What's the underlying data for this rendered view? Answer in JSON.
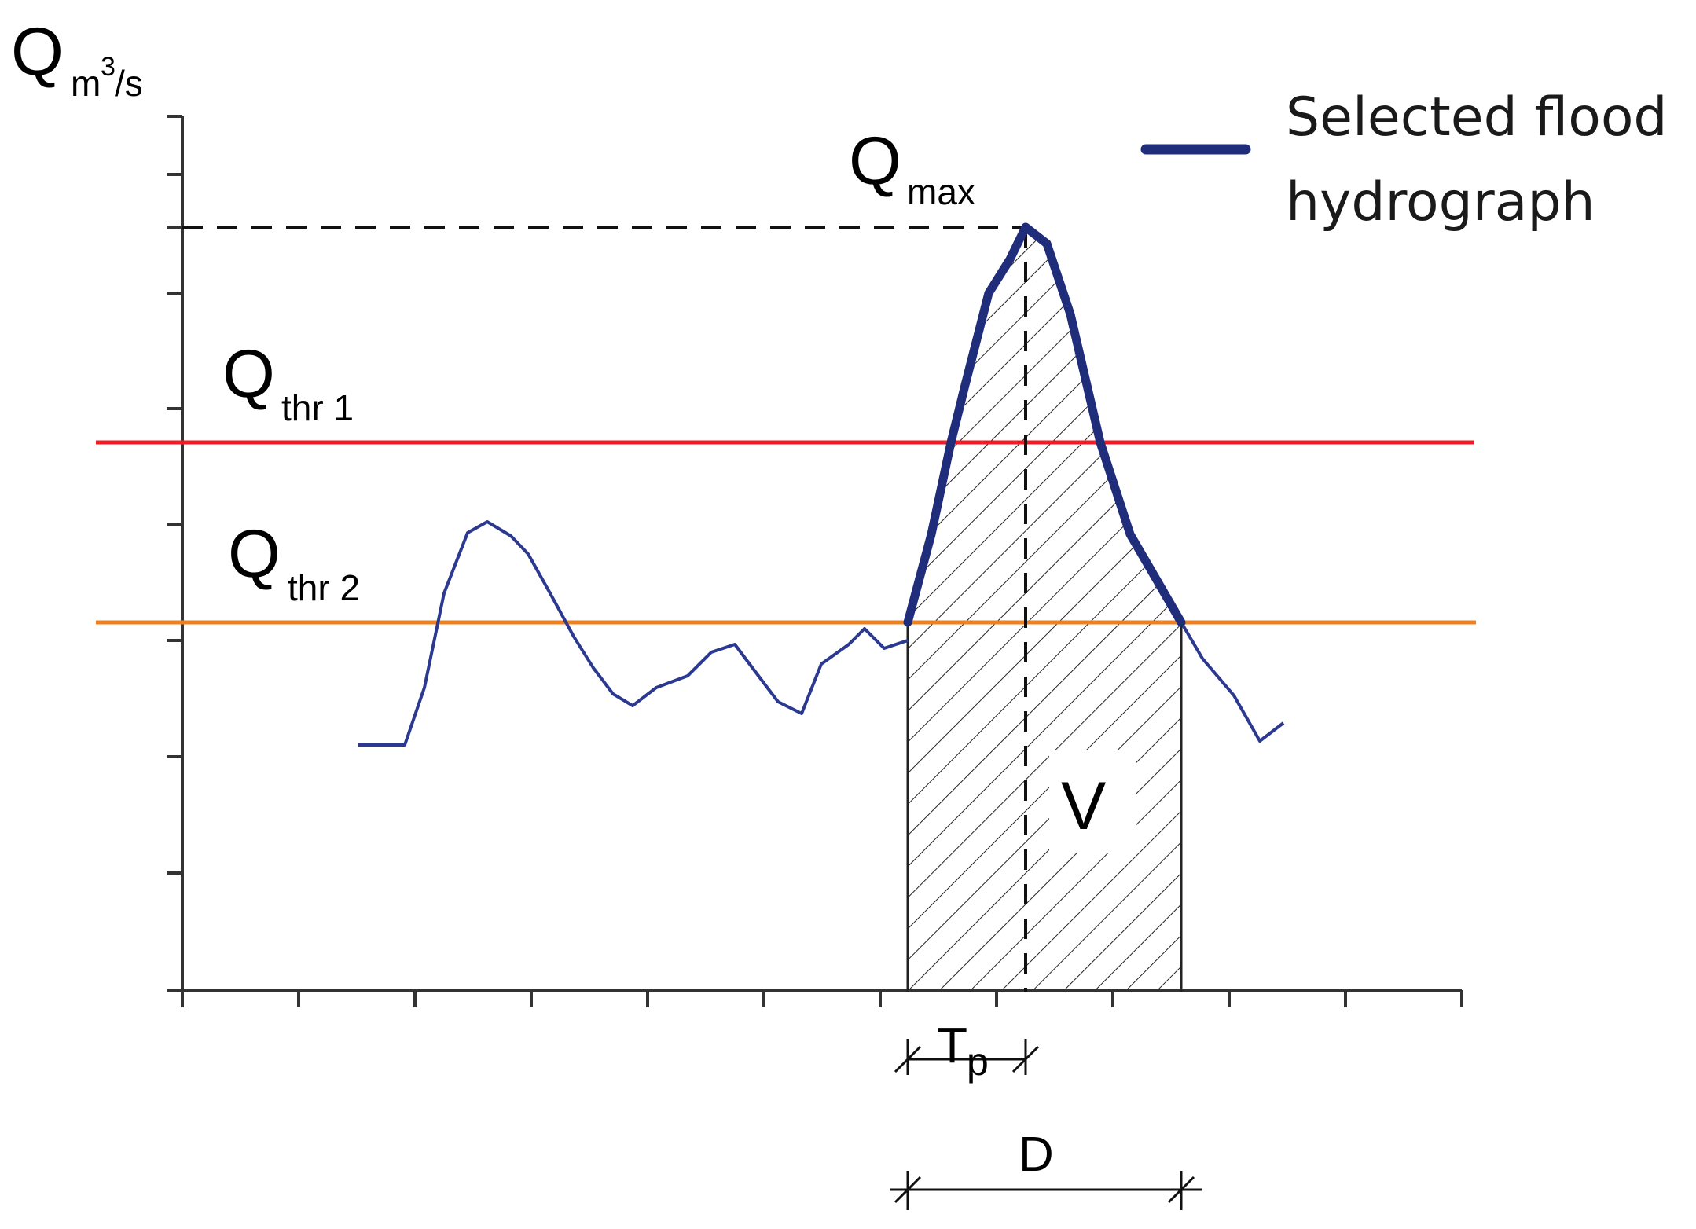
{
  "axis": {
    "y_symbol": "Q",
    "y_unit_prefix": "m",
    "y_unit_exp": "3",
    "y_unit_suffix": "/s"
  },
  "labels": {
    "qmax_main": "Q",
    "qmax_sub": "max",
    "qthr1_main": "Q",
    "qthr1_sub": "thr 1",
    "qthr2_main": "Q",
    "qthr2_sub": "thr 2",
    "volume": "V",
    "tp_main": "T",
    "tp_sub": "p",
    "duration": "D"
  },
  "legend": {
    "line1": "Selected flood",
    "line2": "hydrograph"
  },
  "colors": {
    "axis": "#333333",
    "hydrograph": "#2b3990",
    "selected_hydrograph": "#1f2d7a",
    "threshold_1": "#ee1c25",
    "threshold_2": "#f0801e",
    "hatch": "#222222"
  }
}
